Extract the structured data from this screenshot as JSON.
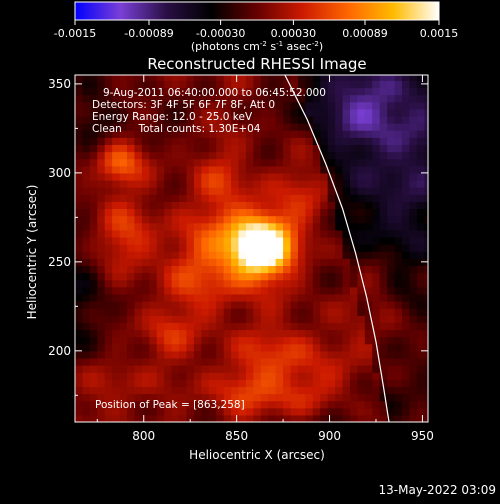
{
  "chart_data": {
    "type": "heatmap",
    "title": "Reconstructed RHESSI Image",
    "xlabel": "Heliocentric X (arcsec)",
    "ylabel": "Heliocentric Y (arcsec)",
    "xlim": [
      763,
      953
    ],
    "ylim": [
      160,
      355
    ],
    "x_ticks": [
      800,
      850,
      900,
      950
    ],
    "y_ticks": [
      200,
      250,
      300,
      350
    ],
    "grid": false,
    "colorbar": {
      "min": -0.0015,
      "max": 0.0015,
      "ticks": [
        -0.0015,
        -0.00089,
        -0.0003,
        0.0003,
        0.00089,
        0.0015
      ],
      "tick_labels": [
        "-0.0015",
        "-0.00089",
        "-0.00030",
        "0.00030",
        "0.00089",
        "0.0015"
      ],
      "label": "(photons cm",
      "label_sup1": "-2",
      "label_mid": " s",
      "label_sup2": "-1",
      "label_end": " asec",
      "label_sup3": "-2",
      "label_close": ")",
      "colormap": [
        "#0000ff",
        "#7a3fd6",
        "#2a0f45",
        "#000000",
        "#660000",
        "#cc1a00",
        "#ff6600",
        "#ffbb00",
        "#ffffff"
      ]
    },
    "annotations": [
      "9-Aug-2011 06:40:00.000 to 06:45:52.000",
      "Detectors: 3F 4F 5F 6F 7F 8F, Att 0",
      "Energy Range: 12.0 - 25.0 keV",
      "Clean     Total counts: 1.30E+04"
    ],
    "peak_label": "Position of Peak = [863,258]",
    "peak": {
      "x": 863,
      "y": 258
    },
    "bright_regions": [
      {
        "x": 863,
        "y": 258,
        "sx": 11,
        "sy": 11,
        "amp": 0.00165
      },
      {
        "x": 853,
        "y": 263,
        "sx": 20,
        "sy": 17,
        "amp": 0.00055
      },
      {
        "x": 787,
        "y": 305,
        "sx": 9,
        "sy": 9,
        "amp": 0.0006
      },
      {
        "x": 790,
        "y": 265,
        "sx": 11,
        "sy": 12,
        "amp": 0.00045
      },
      {
        "x": 830,
        "y": 240,
        "sx": 16,
        "sy": 18,
        "amp": 0.00035
      },
      {
        "x": 890,
        "y": 290,
        "sx": 12,
        "sy": 14,
        "amp": 0.00032
      },
      {
        "x": 875,
        "y": 198,
        "sx": 18,
        "sy": 12,
        "amp": 0.0004
      },
      {
        "x": 853,
        "y": 178,
        "sx": 15,
        "sy": 10,
        "amp": 0.00035
      },
      {
        "x": 885,
        "y": 175,
        "sx": 14,
        "sy": 10,
        "amp": 0.00035
      },
      {
        "x": 925,
        "y": 238,
        "sx": 8,
        "sy": 10,
        "amp": 0.00034
      },
      {
        "x": 930,
        "y": 210,
        "sx": 10,
        "sy": 12,
        "amp": 0.0003
      },
      {
        "x": 812,
        "y": 208,
        "sx": 10,
        "sy": 10,
        "amp": 0.0003
      },
      {
        "x": 783,
        "y": 180,
        "sx": 12,
        "sy": 10,
        "amp": 0.00025
      },
      {
        "x": 842,
        "y": 298,
        "sx": 10,
        "sy": 12,
        "amp": 0.0003
      }
    ],
    "dark_regions": [
      {
        "x": 935,
        "y": 310,
        "sx": 25,
        "sy": 40,
        "amp": -0.00055
      },
      {
        "x": 915,
        "y": 340,
        "sx": 25,
        "sy": 15,
        "amp": -0.00045
      },
      {
        "x": 765,
        "y": 225,
        "sx": 12,
        "sy": 25,
        "amp": -0.0004
      },
      {
        "x": 770,
        "y": 335,
        "sx": 10,
        "sy": 18,
        "amp": -0.0003
      },
      {
        "x": 805,
        "y": 332,
        "sx": 12,
        "sy": 8,
        "amp": -0.00025
      },
      {
        "x": 898,
        "y": 160,
        "sx": 14,
        "sy": 8,
        "amp": -0.0003
      }
    ],
    "limb_curve": [
      [
        876,
        355
      ],
      [
        888,
        330
      ],
      [
        898,
        305
      ],
      [
        907,
        280
      ],
      [
        914,
        255
      ],
      [
        920,
        230
      ],
      [
        925,
        205
      ],
      [
        929,
        180
      ],
      [
        932,
        160
      ]
    ]
  },
  "footer": {
    "timestamp": "13-May-2022 03:09"
  }
}
